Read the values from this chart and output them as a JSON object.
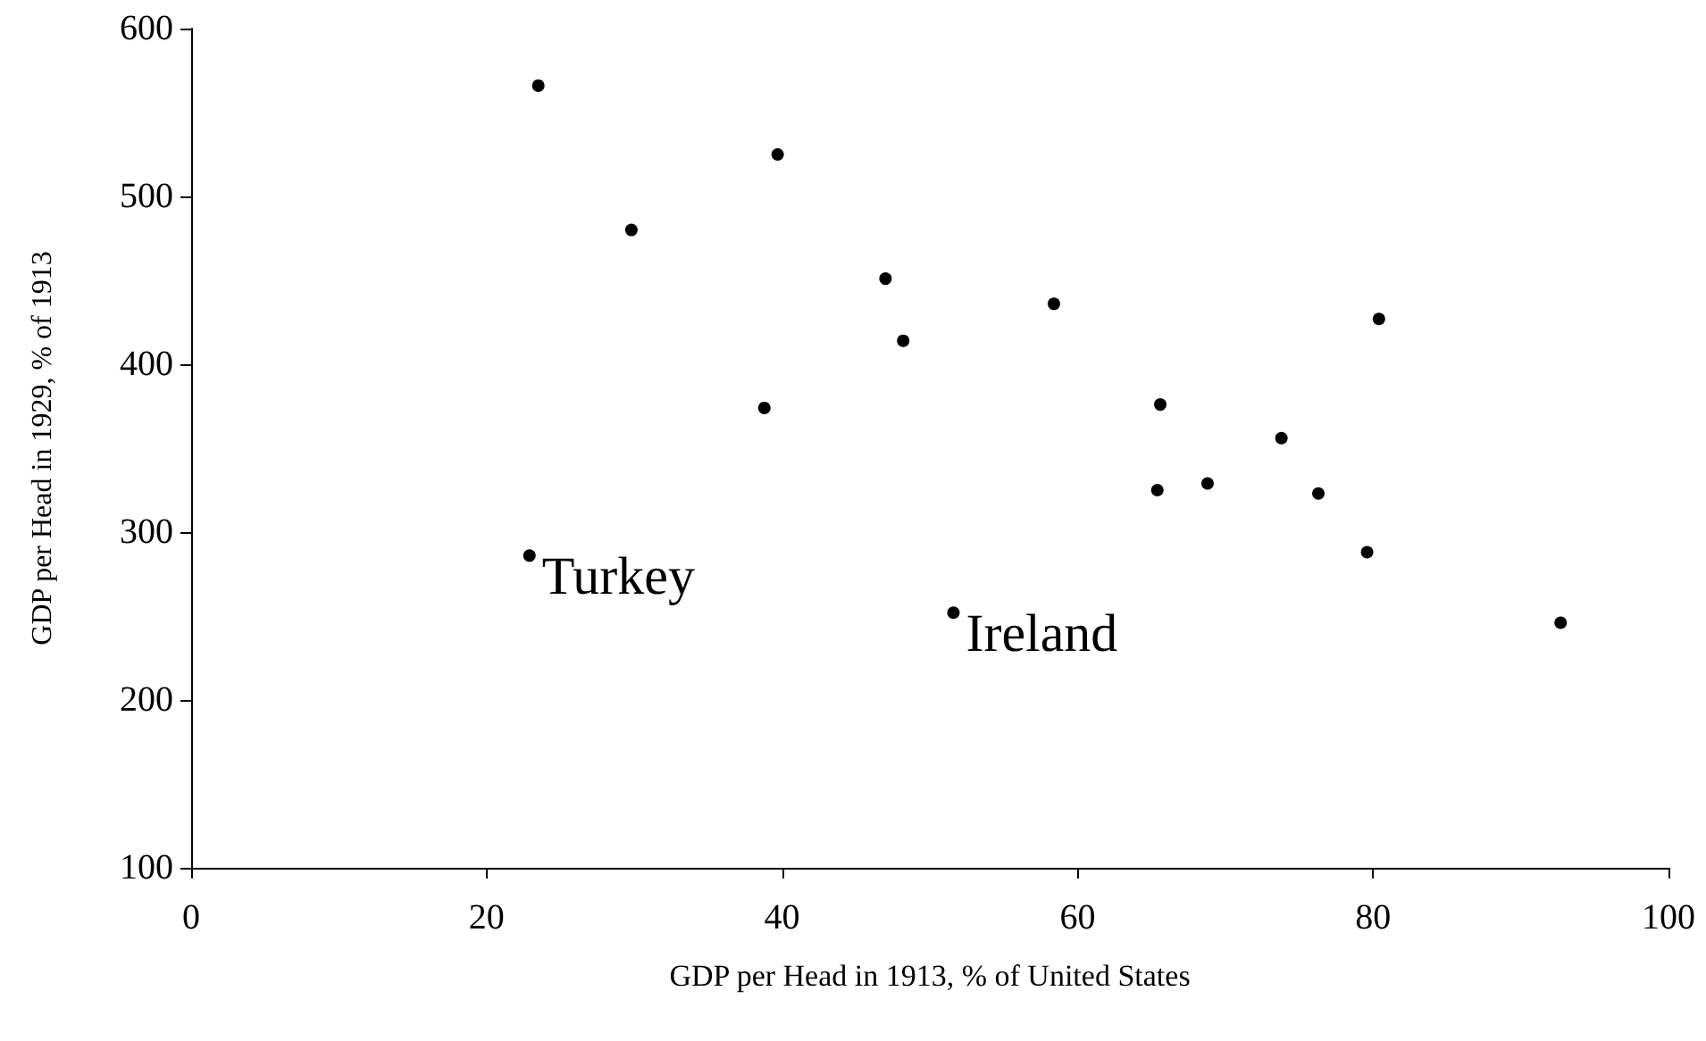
{
  "chart_data": {
    "type": "scatter",
    "xlabel": "GDP per Head in 1913, % of United States",
    "ylabel": "GDP per Head in 1929, % of 1913",
    "x": [
      23.5,
      39.7,
      29.8,
      47.0,
      48.2,
      38.8,
      22.9,
      51.6,
      58.4,
      80.4,
      65.6,
      73.8,
      65.4,
      68.8,
      76.3,
      79.6,
      92.7
    ],
    "series": [
      {
        "color": "#000000",
        "values": [
          566,
          525,
          480,
          451,
          414,
          374,
          286,
          252,
          436,
          427,
          376,
          356,
          325,
          329,
          323,
          288,
          246
        ]
      }
    ],
    "xlim": [
      0,
      100
    ],
    "xticks": [
      0,
      20,
      40,
      60,
      80,
      100
    ],
    "ylim": [
      100,
      600
    ],
    "yticks": [
      100,
      200,
      300,
      400,
      500,
      600
    ],
    "grid": false,
    "marker": "circle",
    "annotations": [
      {
        "text": "Turkey",
        "x": 22.9,
        "y": 286
      },
      {
        "text": "Ireland",
        "x": 51.6,
        "y": 252
      }
    ]
  }
}
